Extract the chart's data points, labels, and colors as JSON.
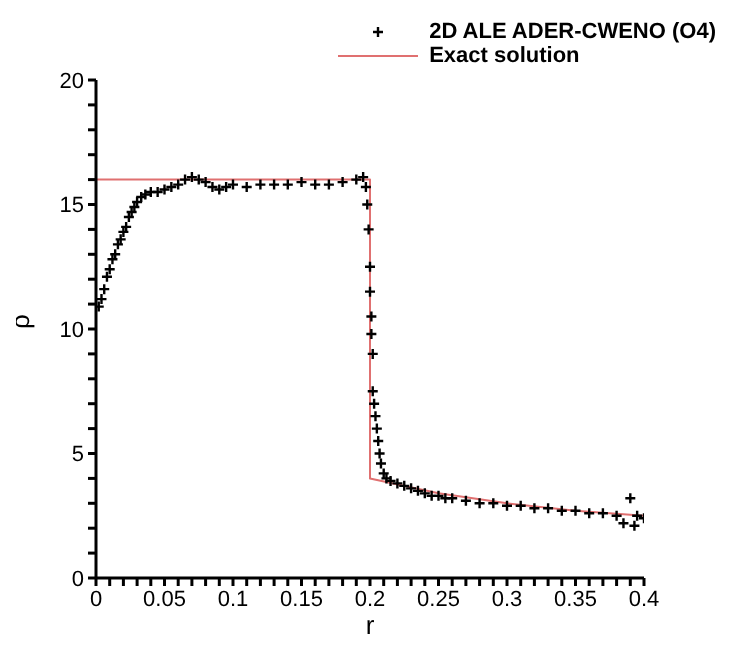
{
  "chart_data": {
    "type": "scatter",
    "xlabel": "r",
    "ylabel": "ρ",
    "xlim": [
      0,
      0.4
    ],
    "ylim": [
      0,
      20
    ],
    "xticks": [
      0,
      {
        "value": 0.01,
        "label": null
      },
      {
        "value": 0.02,
        "label": null
      },
      {
        "value": 0.03,
        "label": null
      },
      {
        "value": 0.04,
        "label": null
      },
      0.05,
      {
        "value": 0.06,
        "label": null
      },
      {
        "value": 0.07,
        "label": null
      },
      {
        "value": 0.08,
        "label": null
      },
      {
        "value": 0.09,
        "label": null
      },
      0.1,
      {
        "value": 0.11,
        "label": null
      },
      {
        "value": 0.12,
        "label": null
      },
      {
        "value": 0.13,
        "label": null
      },
      {
        "value": 0.14,
        "label": null
      },
      0.15,
      {
        "value": 0.16,
        "label": null
      },
      {
        "value": 0.17,
        "label": null
      },
      {
        "value": 0.18,
        "label": null
      },
      {
        "value": 0.19,
        "label": null
      },
      0.2,
      {
        "value": 0.21,
        "label": null
      },
      {
        "value": 0.22,
        "label": null
      },
      {
        "value": 0.23,
        "label": null
      },
      {
        "value": 0.24,
        "label": null
      },
      0.25,
      {
        "value": 0.26,
        "label": null
      },
      {
        "value": 0.27,
        "label": null
      },
      {
        "value": 0.28,
        "label": null
      },
      {
        "value": 0.29,
        "label": null
      },
      0.3,
      {
        "value": 0.31,
        "label": null
      },
      {
        "value": 0.32,
        "label": null
      },
      {
        "value": 0.33,
        "label": null
      },
      {
        "value": 0.34,
        "label": null
      },
      0.35,
      {
        "value": 0.36,
        "label": null
      },
      {
        "value": 0.37,
        "label": null
      },
      {
        "value": 0.38,
        "label": null
      },
      {
        "value": 0.39,
        "label": null
      },
      0.4
    ],
    "yticks": [
      0,
      {
        "value": 1,
        "label": null
      },
      {
        "value": 2,
        "label": null
      },
      {
        "value": 3,
        "label": null
      },
      {
        "value": 4,
        "label": null
      },
      5,
      {
        "value": 6,
        "label": null
      },
      {
        "value": 7,
        "label": null
      },
      {
        "value": 8,
        "label": null
      },
      {
        "value": 9,
        "label": null
      },
      10,
      {
        "value": 11,
        "label": null
      },
      {
        "value": 12,
        "label": null
      },
      {
        "value": 13,
        "label": null
      },
      {
        "value": 14,
        "label": null
      },
      15,
      {
        "value": 16,
        "label": null
      },
      {
        "value": 17,
        "label": null
      },
      {
        "value": 18,
        "label": null
      },
      {
        "value": 19,
        "label": null
      },
      20
    ],
    "legend": "top right",
    "series": [
      {
        "name": "2D ALE ADER-CWENO (O4)",
        "marker": "cross",
        "color": "#000000",
        "x": [
          0.002,
          0.004,
          0.006,
          0.008,
          0.01,
          0.012,
          0.014,
          0.016,
          0.018,
          0.02,
          0.022,
          0.024,
          0.026,
          0.028,
          0.03,
          0.033,
          0.036,
          0.04,
          0.045,
          0.05,
          0.055,
          0.06,
          0.065,
          0.07,
          0.075,
          0.08,
          0.085,
          0.09,
          0.095,
          0.1,
          0.11,
          0.12,
          0.13,
          0.14,
          0.15,
          0.16,
          0.17,
          0.18,
          0.19,
          0.195,
          0.197,
          0.198,
          0.199,
          0.2,
          0.2,
          0.201,
          0.201,
          0.202,
          0.202,
          0.203,
          0.204,
          0.205,
          0.206,
          0.207,
          0.208,
          0.21,
          0.212,
          0.215,
          0.22,
          0.225,
          0.23,
          0.235,
          0.24,
          0.245,
          0.25,
          0.255,
          0.26,
          0.27,
          0.28,
          0.29,
          0.3,
          0.31,
          0.32,
          0.33,
          0.34,
          0.35,
          0.36,
          0.37,
          0.38,
          0.385,
          0.39,
          0.393,
          0.395,
          0.4
        ],
        "values": [
          10.9,
          11.2,
          11.6,
          12.1,
          12.4,
          12.8,
          13.0,
          13.4,
          13.6,
          13.9,
          14.1,
          14.5,
          14.7,
          14.9,
          15.1,
          15.3,
          15.4,
          15.5,
          15.5,
          15.6,
          15.7,
          15.8,
          16.0,
          16.1,
          16.0,
          15.9,
          15.7,
          15.6,
          15.7,
          15.8,
          15.7,
          15.8,
          15.8,
          15.8,
          15.9,
          15.8,
          15.8,
          15.9,
          16.0,
          16.1,
          15.7,
          15.0,
          14.0,
          12.5,
          11.5,
          10.5,
          9.8,
          9.0,
          7.5,
          7.0,
          6.5,
          6.0,
          5.5,
          5.0,
          4.6,
          4.2,
          4.0,
          3.9,
          3.8,
          3.7,
          3.6,
          3.5,
          3.4,
          3.3,
          3.3,
          3.2,
          3.2,
          3.1,
          3.0,
          3.0,
          2.9,
          2.9,
          2.8,
          2.8,
          2.7,
          2.7,
          2.6,
          2.6,
          2.5,
          2.2,
          3.2,
          2.1,
          2.5,
          2.4
        ]
      },
      {
        "name": "Exact solution",
        "type": "line",
        "color": "#e07070",
        "x": [
          0,
          0.2,
          0.2,
          0.25,
          0.3,
          0.35,
          0.4
        ],
        "values": [
          16,
          16,
          4,
          3.4,
          3.0,
          2.7,
          2.5
        ]
      }
    ]
  }
}
